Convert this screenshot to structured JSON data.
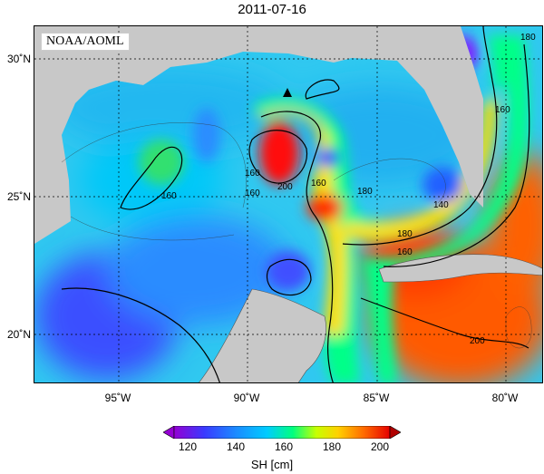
{
  "title": "2011-07-16",
  "credit": "NOAA/AOML",
  "lat_labels": [
    "30˚N",
    "25˚N",
    "20˚N"
  ],
  "lon_labels": [
    "95˚W",
    "90˚W",
    "85˚W",
    "80˚W"
  ],
  "colorbar": {
    "ticks": [
      "120",
      "140",
      "160",
      "180",
      "200"
    ],
    "label": "SH [cm]",
    "min": 115,
    "max": 205,
    "colors": [
      "#9400d3",
      "#3a3aff",
      "#00ccff",
      "#00ff7f",
      "#c8ff00",
      "#ffd000",
      "#ff6a00",
      "#e60000"
    ]
  },
  "contour_labels": [
    "160",
    "160",
    "160",
    "200",
    "160",
    "180",
    "180",
    "140",
    "160",
    "180",
    "160",
    "200"
  ],
  "markers": {
    "feature": "triangle-marker"
  }
}
